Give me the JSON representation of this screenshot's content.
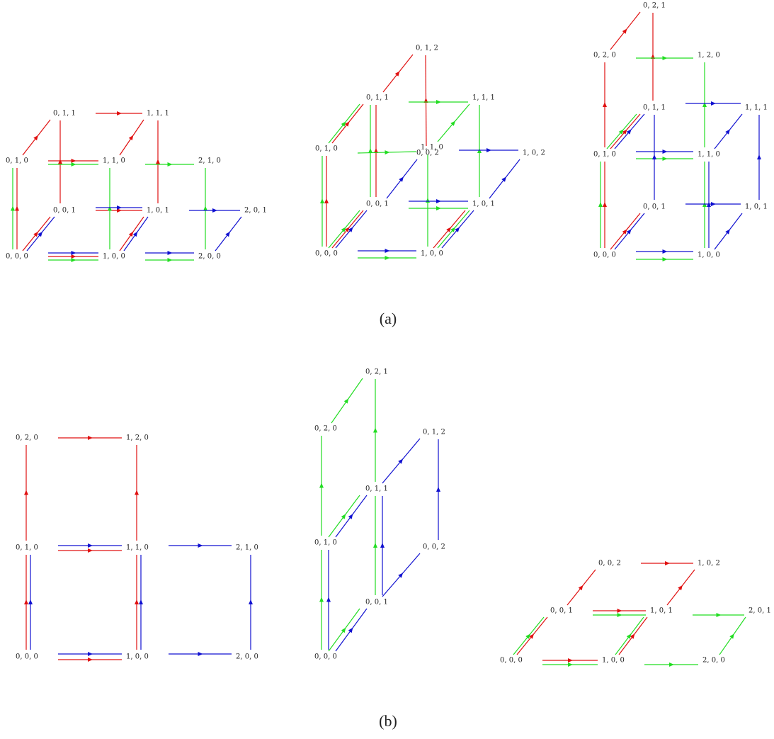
{
  "panels": [
    {
      "caption": "(a)",
      "diagrams": [
        {
          "nodes": [
            "0, 1, 1",
            "1, 1, 1",
            "0, 1, 0",
            "1, 1, 0",
            "2, 1, 0",
            "0, 0, 1",
            "1, 0, 1",
            "2, 0, 1",
            "0, 0, 0",
            "1, 0, 0",
            "2, 0, 0"
          ]
        },
        {
          "nodes": [
            "0, 1, 2",
            "0, 1, 1",
            "1, 1, 1",
            "0, 1, 0",
            "1, 1, 0",
            "0, 0, 2",
            "1, 0, 2",
            "0, 0, 1",
            "1, 0, 1",
            "0, 0, 0",
            "1, 0, 0"
          ]
        },
        {
          "nodes": [
            "0, 2, 1",
            "0, 2, 0",
            "1, 2, 0",
            "0, 1, 1",
            "1, 1, 1",
            "0, 1, 0",
            "1, 1, 0",
            "0, 0, 1",
            "1, 0, 1",
            "0, 0, 0",
            "1, 0, 0"
          ]
        }
      ]
    },
    {
      "caption": "(b)",
      "diagrams": [
        {
          "nodes": [
            "0, 2, 0",
            "1, 2, 0",
            "0, 1, 0",
            "1, 1, 0",
            "2, 1, 0",
            "0, 0, 0",
            "1, 0, 0",
            "2, 0, 0"
          ]
        },
        {
          "nodes": [
            "0, 2, 1",
            "0, 2, 0",
            "0, 1, 2",
            "0, 1, 1",
            "0, 1, 0",
            "0, 0, 2",
            "0, 0, 1",
            "0, 0, 0"
          ]
        },
        {
          "nodes": [
            "0, 0, 2",
            "1, 0, 2",
            "0, 0, 1",
            "1, 0, 1",
            "2, 0, 1",
            "0, 0, 0",
            "1, 0, 0",
            "2, 0, 0"
          ]
        }
      ]
    }
  ]
}
